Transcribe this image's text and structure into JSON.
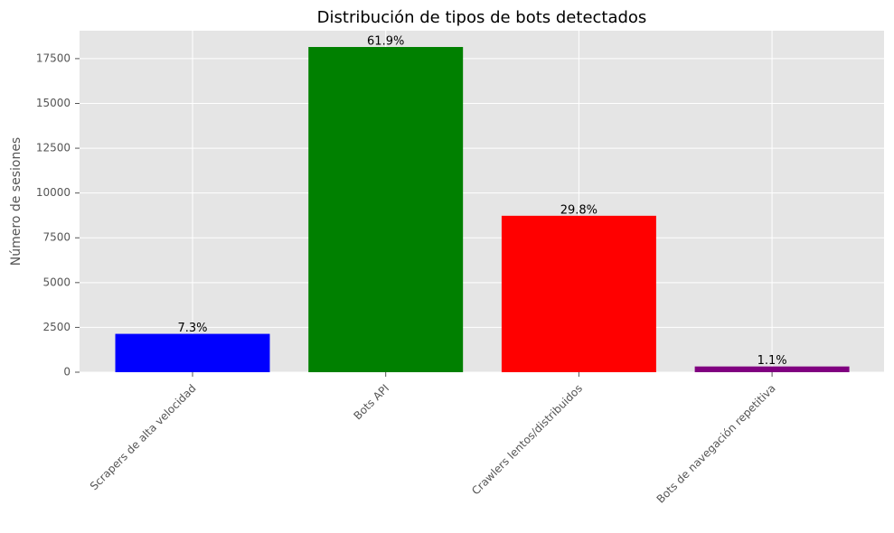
{
  "chart_data": {
    "type": "bar",
    "title": "Distribución de tipos de bots detectados",
    "y_label": "Número de sesiones",
    "categories": [
      "Scrapers de alta velocidad",
      "Bots API",
      "Crawlers lentos/distribuidos",
      "Bots de navegación repetitiva"
    ],
    "values": [
      2140,
      18150,
      8730,
      320
    ],
    "percent_labels": [
      "7.3%",
      "61.9%",
      "29.8%",
      "1.1%"
    ],
    "colors": [
      "blue",
      "green",
      "red",
      "purple"
    ],
    "ylim": [
      0,
      19058
    ],
    "yticks": [
      0,
      2500,
      5000,
      7500,
      10000,
      12500,
      15000,
      17500
    ],
    "grid": true
  }
}
